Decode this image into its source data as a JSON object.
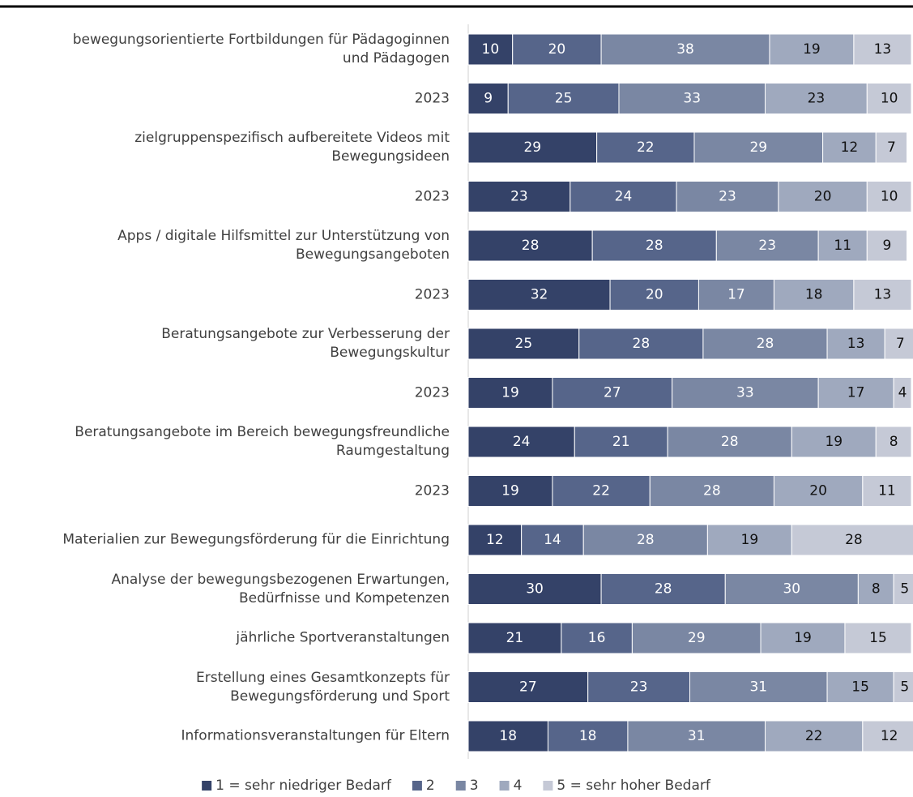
{
  "chart_data": {
    "type": "stacked_barh",
    "categories": [
      "bewegungsorientierte Fortbildungen für Pädagoginnen und Pädagogen",
      "2023",
      "zielgruppenspezifisch aufbereitete Videos mit Bewegungsideen",
      "2023",
      "Apps / digitale Hilfsmittel zur Unterstützung von Bewegungsangeboten",
      "2023",
      "Beratungsangebote zur Verbesserung der Bewegungskultur",
      "2023",
      "Beratungsangebote im Bereich bewegungsfreundliche Raumgestaltung",
      "2023",
      "Materialien zur Bewegungsförderung für die Einrichtung",
      "Analyse der bewegungsbezogenen Erwartungen, Bedürfnisse und Kompetenzen",
      "jährliche Sportveranstaltungen",
      "Erstellung eines Gesamtkonzepts für Bewegungsförderung und Sport",
      "Informationsveranstaltungen für Eltern"
    ],
    "series": [
      {
        "name": "1 = sehr niedriger Bedarf",
        "color": "#344268",
        "values": [
          10,
          9,
          29,
          23,
          28,
          32,
          25,
          19,
          24,
          19,
          12,
          30,
          21,
          27,
          18
        ]
      },
      {
        "name": "2",
        "color": "#56658a",
        "values": [
          20,
          25,
          22,
          24,
          28,
          20,
          28,
          27,
          21,
          22,
          14,
          28,
          16,
          23,
          18
        ]
      },
      {
        "name": "3",
        "color": "#7a87a3",
        "values": [
          38,
          33,
          29,
          23,
          23,
          17,
          28,
          33,
          28,
          28,
          28,
          30,
          29,
          31,
          31
        ]
      },
      {
        "name": "4",
        "color": "#9fa9be",
        "values": [
          19,
          23,
          12,
          20,
          11,
          18,
          13,
          17,
          19,
          20,
          19,
          8,
          19,
          15,
          22
        ]
      },
      {
        "name": "5 = sehr hoher Bedarf",
        "color": "#c5c9d6",
        "values": [
          13,
          10,
          7,
          10,
          9,
          13,
          7,
          4,
          8,
          11,
          28,
          5,
          15,
          5,
          12
        ]
      }
    ],
    "xlim": [
      0,
      100
    ],
    "legend": "bottom"
  }
}
